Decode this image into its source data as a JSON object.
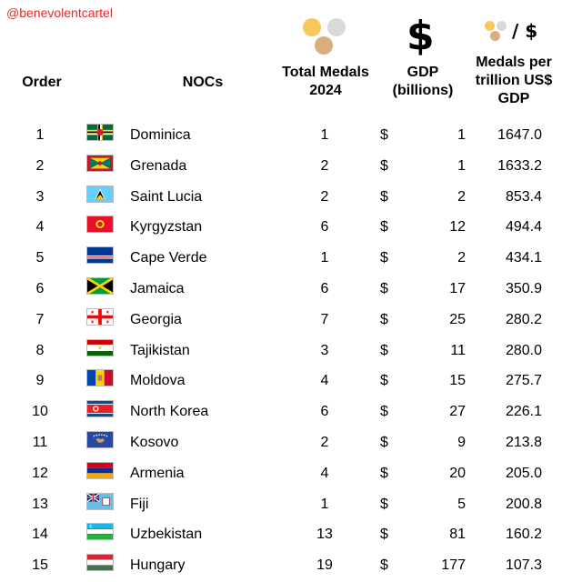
{
  "handle": "@benevolentcartel",
  "headers": {
    "order": "Order",
    "nocs": "NOCs",
    "total_medals": [
      "Total Medals",
      "2024"
    ],
    "gdp": [
      "GDP",
      "(billions)"
    ],
    "medals_per_trillion": [
      "Medals per",
      "trillion US$",
      "GDP"
    ]
  },
  "header_icons": {
    "dollar": "$",
    "ratio_separator": "/",
    "ratio_dollar": "$"
  },
  "colors": {
    "handle": "#e8262b",
    "gold": "#f7c85a",
    "silver": "#d9d9d9",
    "bronze": "#d9ad80"
  },
  "rows": [
    {
      "order": "1",
      "noc": "Dominica",
      "flag": "dominica-flag-icon",
      "total": "1",
      "currency": "$",
      "gdp": "1",
      "mpt": "1647.0"
    },
    {
      "order": "2",
      "noc": "Grenada",
      "flag": "grenada-flag-icon",
      "total": "2",
      "currency": "$",
      "gdp": "1",
      "mpt": "1633.2"
    },
    {
      "order": "3",
      "noc": "Saint Lucia",
      "flag": "saint-lucia-flag-icon",
      "total": "2",
      "currency": "$",
      "gdp": "2",
      "mpt": "853.4"
    },
    {
      "order": "4",
      "noc": "Kyrgyzstan",
      "flag": "kyrgyzstan-flag-icon",
      "total": "6",
      "currency": "$",
      "gdp": "12",
      "mpt": "494.4"
    },
    {
      "order": "5",
      "noc": "Cape Verde",
      "flag": "cape-verde-flag-icon",
      "total": "1",
      "currency": "$",
      "gdp": "2",
      "mpt": "434.1"
    },
    {
      "order": "6",
      "noc": "Jamaica",
      "flag": "jamaica-flag-icon",
      "total": "6",
      "currency": "$",
      "gdp": "17",
      "mpt": "350.9"
    },
    {
      "order": "7",
      "noc": "Georgia",
      "flag": "georgia-flag-icon",
      "total": "7",
      "currency": "$",
      "gdp": "25",
      "mpt": "280.2"
    },
    {
      "order": "8",
      "noc": "Tajikistan",
      "flag": "tajikistan-flag-icon",
      "total": "3",
      "currency": "$",
      "gdp": "11",
      "mpt": "280.0"
    },
    {
      "order": "9",
      "noc": "Moldova",
      "flag": "moldova-flag-icon",
      "total": "4",
      "currency": "$",
      "gdp": "15",
      "mpt": "275.7"
    },
    {
      "order": "10",
      "noc": "North Korea",
      "flag": "north-korea-flag-icon",
      "total": "6",
      "currency": "$",
      "gdp": "27",
      "mpt": "226.1"
    },
    {
      "order": "11",
      "noc": "Kosovo",
      "flag": "kosovo-flag-icon",
      "total": "2",
      "currency": "$",
      "gdp": "9",
      "mpt": "213.8"
    },
    {
      "order": "12",
      "noc": "Armenia",
      "flag": "armenia-flag-icon",
      "total": "4",
      "currency": "$",
      "gdp": "20",
      "mpt": "205.0"
    },
    {
      "order": "13",
      "noc": "Fiji",
      "flag": "fiji-flag-icon",
      "total": "1",
      "currency": "$",
      "gdp": "5",
      "mpt": "200.8"
    },
    {
      "order": "14",
      "noc": "Uzbekistan",
      "flag": "uzbekistan-flag-icon",
      "total": "13",
      "currency": "$",
      "gdp": "81",
      "mpt": "160.2"
    },
    {
      "order": "15",
      "noc": "Hungary",
      "flag": "hungary-flag-icon",
      "total": "19",
      "currency": "$",
      "gdp": "177",
      "mpt": "107.3"
    }
  ]
}
